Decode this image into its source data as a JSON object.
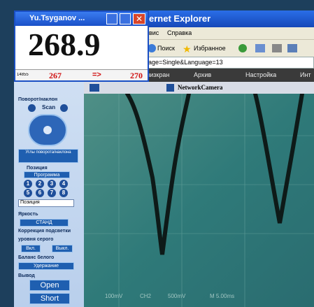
{
  "meter_window": {
    "title": "Yu.Tsyganov ...",
    "reading": "268.9",
    "counter": "14855",
    "from": "267",
    "arrow": "=>",
    "to": "270"
  },
  "browser": {
    "title": "ernet Explorer",
    "menu": [
      "вис",
      "Справка"
    ],
    "toolbar": [
      "Поиск",
      "Избранное"
    ],
    "address": "age=Single&Language=13",
    "tabs": [
      "лизкран",
      "Архив",
      "Настройка",
      "Инт"
    ]
  },
  "camera": {
    "title": "NetworkCamera",
    "scope_labels": [
      "100mV",
      "CH2",
      "500mV",
      "M 5.00ms"
    ]
  },
  "panel": {
    "pan_tilt": "Поворот/наклон",
    "scan": "Scan",
    "angles": "Углы поворота/наклона",
    "position": "Позиция",
    "program": "Программа",
    "presets": [
      "1",
      "2",
      "3",
      "4",
      "5",
      "6",
      "7",
      "8"
    ],
    "position_select": "Позиция",
    "brightness": "Яркость",
    "brightness_value": "СТАНД",
    "backlight": "Коррекция подсветки",
    "gray_level": "уровня серого",
    "on": "Вкл.",
    "off": "Выкл.",
    "white_balance": "Баланс белого",
    "hold": "Удержание",
    "output": "Вывод",
    "open": "Open",
    "short": "Short"
  }
}
